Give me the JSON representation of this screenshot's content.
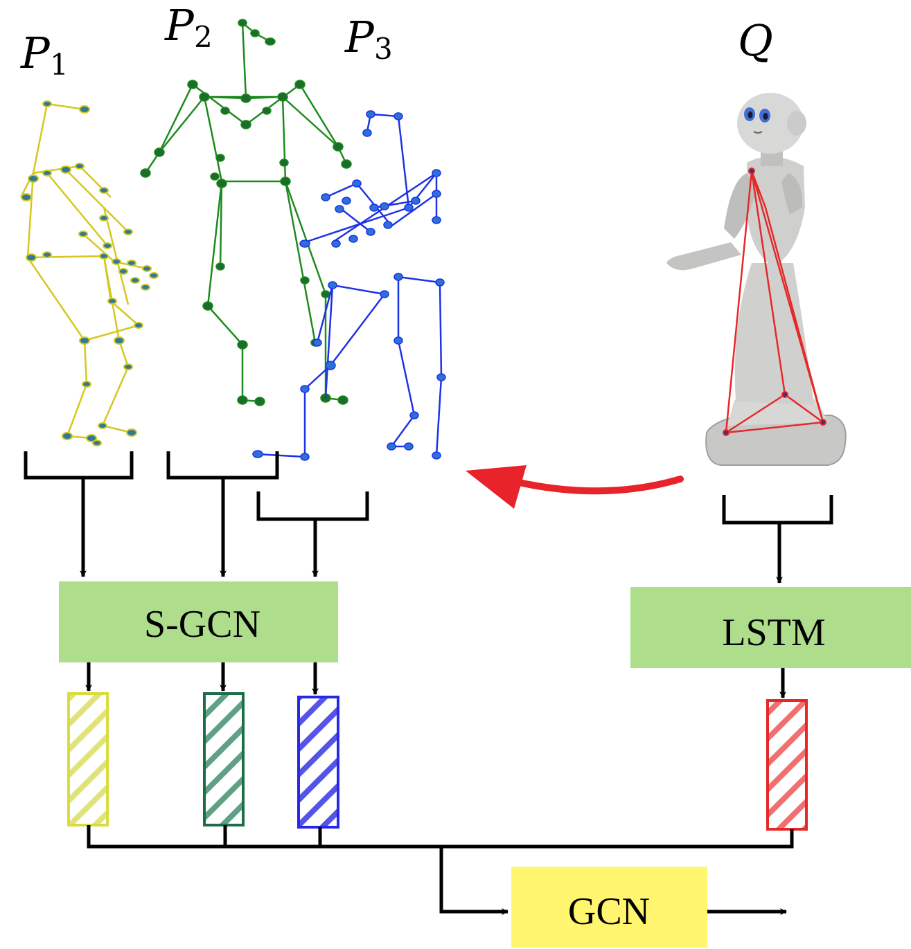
{
  "persons": [
    {
      "symbol": "P",
      "subscript": "1",
      "color": "#d4c81e"
    },
    {
      "symbol": "P",
      "subscript": "2",
      "color": "#1e8a1e"
    },
    {
      "symbol": "P",
      "subscript": "3",
      "color": "#1e32e6"
    }
  ],
  "robot": {
    "symbol": "Q",
    "color": "#e62828"
  },
  "blocks": {
    "sgcn": {
      "label": "S-GCN",
      "color": "#aedd8c"
    },
    "lstm": {
      "label": "LSTM",
      "color": "#aedd8c"
    },
    "gcn": {
      "label": "GCN",
      "color": "#fff56e"
    }
  },
  "features": [
    {
      "name": "p1-feature",
      "color": "#d8dc3c"
    },
    {
      "name": "p2-feature",
      "color": "#1d6e48"
    },
    {
      "name": "p3-feature",
      "color": "#2828e6"
    },
    {
      "name": "q-feature",
      "color": "#e62828"
    }
  ],
  "arrow_color": "#e8232a"
}
